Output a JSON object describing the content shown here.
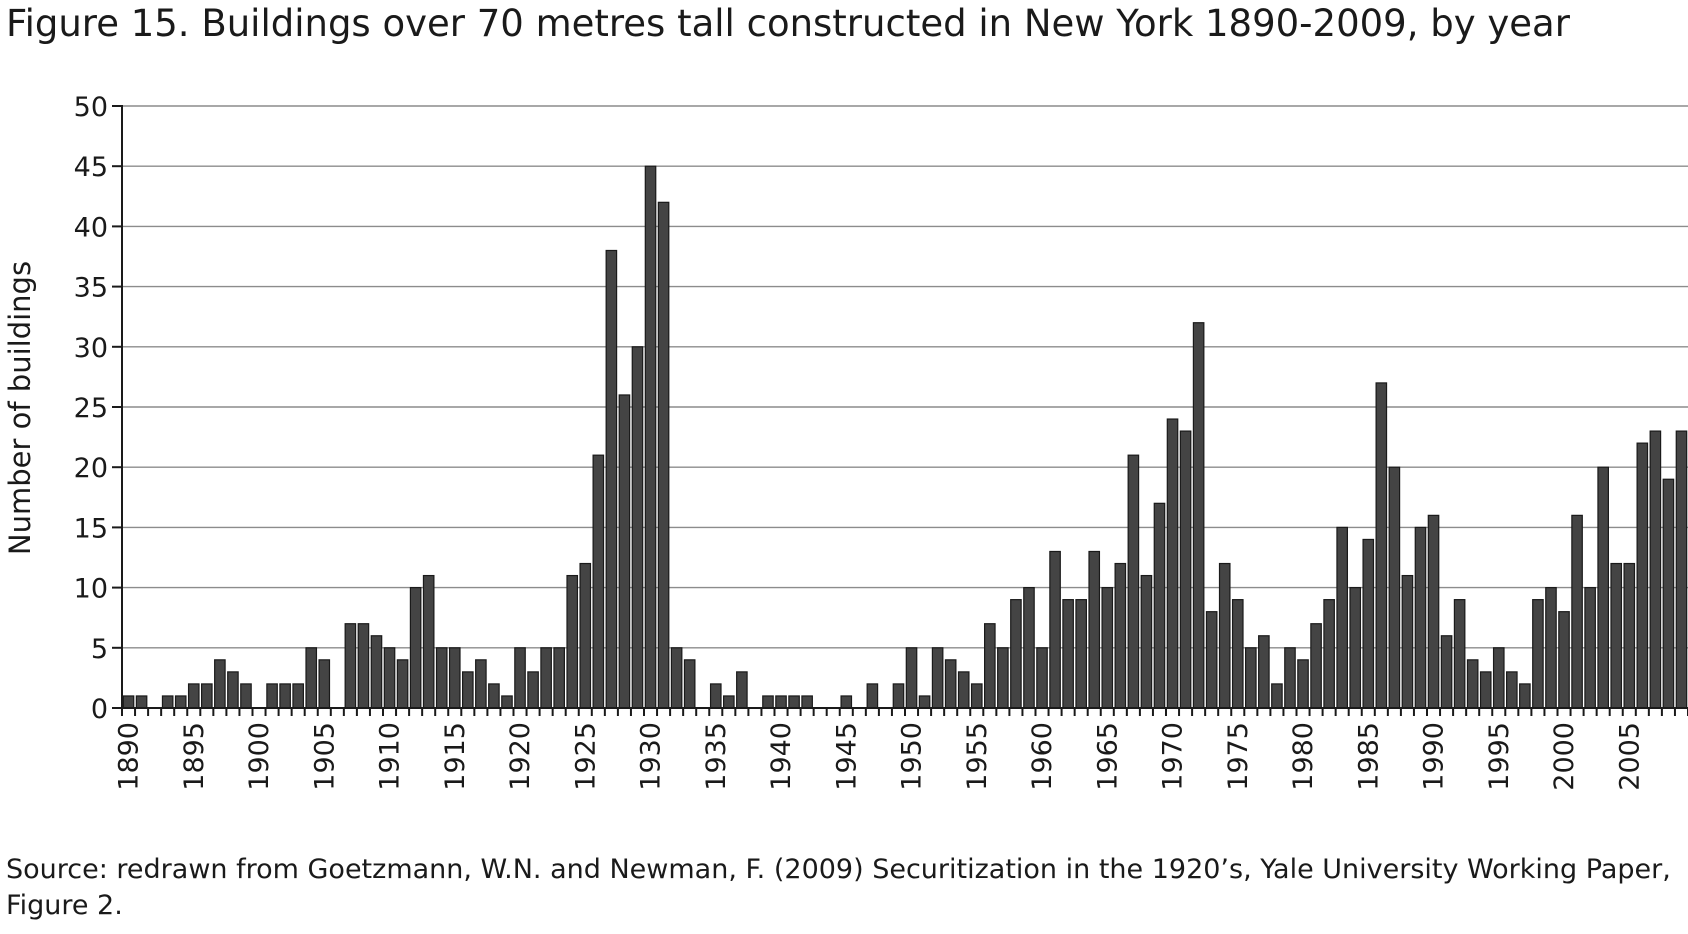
{
  "chart_data": {
    "type": "bar",
    "title": "Figure 15.  Buildings over 70 metres tall constructed in New York 1890-2009, by year",
    "xlabel": "",
    "ylabel": "Number of buildings",
    "ylim": [
      0,
      50
    ],
    "yticks": [
      0,
      5,
      10,
      15,
      20,
      25,
      30,
      35,
      40,
      45,
      50
    ],
    "xticks": [
      1890,
      1895,
      1900,
      1905,
      1910,
      1915,
      1920,
      1925,
      1930,
      1935,
      1940,
      1945,
      1950,
      1955,
      1960,
      1965,
      1970,
      1975,
      1980,
      1985,
      1990,
      1995,
      2000,
      2005
    ],
    "grid": true,
    "categories": [
      1890,
      1891,
      1892,
      1893,
      1894,
      1895,
      1896,
      1897,
      1898,
      1899,
      1900,
      1901,
      1902,
      1903,
      1904,
      1905,
      1906,
      1907,
      1908,
      1909,
      1910,
      1911,
      1912,
      1913,
      1914,
      1915,
      1916,
      1917,
      1918,
      1919,
      1920,
      1921,
      1922,
      1923,
      1924,
      1925,
      1926,
      1927,
      1928,
      1929,
      1930,
      1931,
      1932,
      1933,
      1934,
      1935,
      1936,
      1937,
      1938,
      1939,
      1940,
      1941,
      1942,
      1943,
      1944,
      1945,
      1946,
      1947,
      1948,
      1949,
      1950,
      1951,
      1952,
      1953,
      1954,
      1955,
      1956,
      1957,
      1958,
      1959,
      1960,
      1961,
      1962,
      1963,
      1964,
      1965,
      1966,
      1967,
      1968,
      1969,
      1970,
      1971,
      1972,
      1973,
      1974,
      1975,
      1976,
      1977,
      1978,
      1979,
      1980,
      1981,
      1982,
      1983,
      1984,
      1985,
      1986,
      1987,
      1988,
      1989,
      1990,
      1991,
      1992,
      1993,
      1994,
      1995,
      1996,
      1997,
      1998,
      1999,
      2000,
      2001,
      2002,
      2003,
      2004,
      2005,
      2006,
      2007,
      2008,
      2009
    ],
    "values": [
      1,
      1,
      0,
      1,
      1,
      2,
      2,
      4,
      3,
      2,
      0,
      2,
      2,
      2,
      5,
      4,
      0,
      7,
      7,
      6,
      5,
      4,
      10,
      11,
      5,
      5,
      3,
      4,
      2,
      1,
      5,
      3,
      5,
      5,
      11,
      12,
      21,
      38,
      26,
      30,
      45,
      42,
      5,
      4,
      0,
      2,
      1,
      3,
      0,
      1,
      1,
      1,
      1,
      0,
      0,
      1,
      0,
      2,
      0,
      2,
      5,
      1,
      5,
      4,
      3,
      2,
      7,
      5,
      9,
      10,
      5,
      13,
      9,
      9,
      13,
      10,
      12,
      21,
      11,
      17,
      24,
      23,
      32,
      8,
      12,
      9,
      5,
      6,
      2,
      5,
      4,
      7,
      9,
      15,
      10,
      14,
      27,
      20,
      11,
      15,
      16,
      6,
      9,
      4,
      3,
      5,
      3,
      2,
      9,
      10,
      8,
      16,
      10,
      20,
      12,
      12,
      22,
      23,
      19,
      23
    ]
  },
  "source_note": "Source: redrawn from Goetzmann, W.N. and Newman, F. (2009) Securitization in the 1920’s, Yale University Working Paper, Figure 2."
}
